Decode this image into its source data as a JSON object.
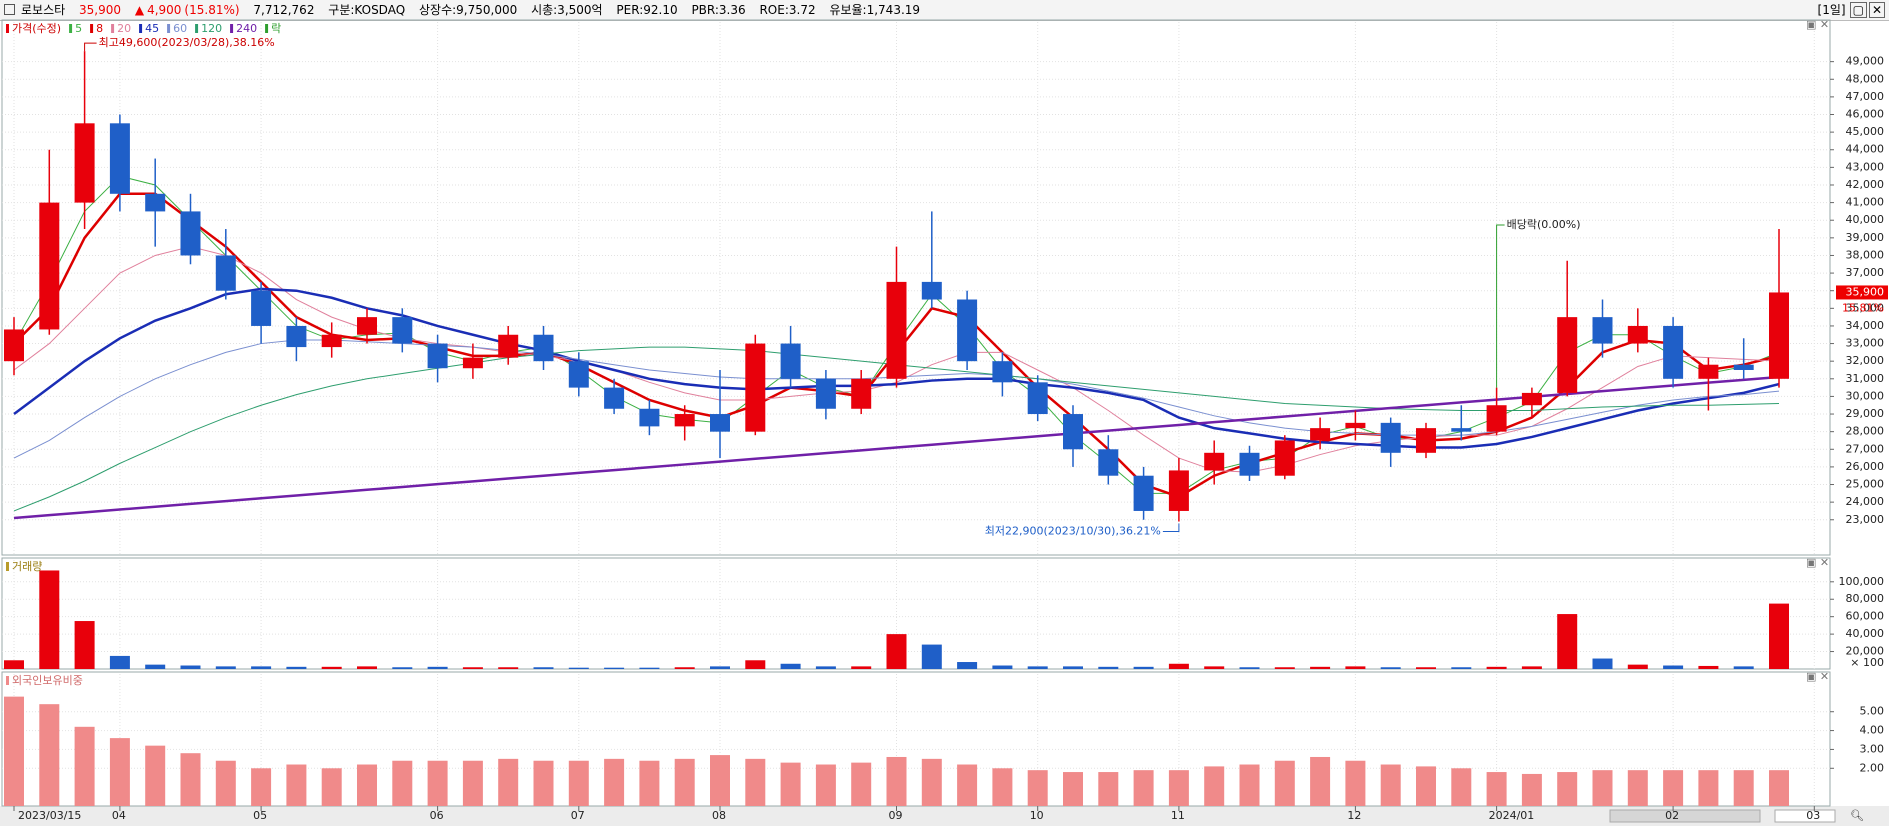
{
  "header": {
    "name": "로보스타",
    "price": "35,900",
    "arrow": "▲",
    "change": "4,900",
    "change_pct": "(15.81%)",
    "volume": "7,712,762",
    "market": "구분:KOSDAQ",
    "shares": "상장수:9,750,000",
    "cap": "시총:3,500억",
    "per": "PER:92.10",
    "pbr": "PBR:3.36",
    "roe": "ROE:3.72",
    "reserve": "유보율:1,743.19",
    "period": "[1일]"
  },
  "chart_data": [
    {
      "type": "candlestick",
      "legend_title": "가격(수정)",
      "legend_extra": "락",
      "up_color": "#e8000b",
      "down_color": "#1f5fc8",
      "extra_color": "#2e9e2e",
      "last_change_label": "15.81%",
      "categories": [
        "2023/03/15",
        null,
        null,
        "04",
        null,
        null,
        null,
        "05",
        null,
        null,
        null,
        null,
        "06",
        null,
        null,
        null,
        "07",
        null,
        null,
        null,
        "08",
        null,
        null,
        null,
        null,
        "09",
        null,
        null,
        null,
        "10",
        null,
        null,
        null,
        "11",
        null,
        null,
        null,
        null,
        "12",
        null,
        null,
        null,
        "2024/01",
        null,
        null,
        null,
        null,
        "02",
        null,
        null,
        null,
        "03"
      ],
      "open": [
        32000,
        33800,
        41000,
        45500,
        41500,
        40500,
        38000,
        36000,
        34000,
        32800,
        33500,
        34500,
        33000,
        31600,
        32200,
        33500,
        32000,
        30500,
        29300,
        28300,
        29000,
        28000,
        33000,
        31000,
        29300,
        31000,
        36500,
        35500,
        32000,
        30800,
        29000,
        27000,
        25500,
        23500,
        25800,
        26800,
        25500,
        27500,
        28200,
        28500,
        26800,
        28200,
        28000,
        29500,
        30200,
        34500,
        33000,
        34000,
        31000,
        31800,
        31000,
        null
      ],
      "high": [
        34500,
        44000,
        49600,
        46000,
        43500,
        41500,
        39500,
        36500,
        34500,
        34200,
        35000,
        35000,
        33500,
        33000,
        34000,
        34000,
        32500,
        31000,
        29800,
        29500,
        31500,
        33500,
        34000,
        31500,
        31500,
        38500,
        40500,
        36000,
        32500,
        31200,
        29500,
        27800,
        26000,
        26500,
        27500,
        27200,
        27800,
        28800,
        29200,
        28800,
        28500,
        29500,
        30500,
        30500,
        37700,
        35500,
        35000,
        34500,
        32200,
        33300,
        39500,
        null
      ],
      "low": [
        31200,
        33500,
        39500,
        40500,
        38500,
        37500,
        35500,
        33000,
        32000,
        32200,
        33000,
        32500,
        30800,
        31000,
        31800,
        31500,
        30000,
        29000,
        27800,
        27500,
        26500,
        27800,
        30500,
        28700,
        29000,
        30500,
        35000,
        31500,
        30000,
        28600,
        26000,
        25000,
        23000,
        22900,
        25000,
        25200,
        25300,
        27000,
        27500,
        26000,
        26500,
        27500,
        27800,
        28800,
        30000,
        32200,
        32500,
        30500,
        29200,
        31000,
        30500,
        null
      ],
      "close": [
        33800,
        41000,
        45500,
        41500,
        40500,
        38000,
        36000,
        34000,
        32800,
        33500,
        34500,
        33000,
        31600,
        32200,
        33500,
        32000,
        30500,
        29300,
        28300,
        29000,
        28000,
        33000,
        31000,
        29300,
        31000,
        36500,
        35500,
        32000,
        30800,
        29000,
        27000,
        25500,
        23500,
        25800,
        26800,
        25500,
        27500,
        28200,
        28500,
        26800,
        28200,
        28000,
        29500,
        30200,
        34500,
        33000,
        34000,
        31000,
        31800,
        31500,
        35900,
        null
      ],
      "series": [
        {
          "name": "5",
          "color": "#3cb043",
          "width": 1,
          "values": [
            33000,
            36500,
            40500,
            42500,
            42000,
            40000,
            38000,
            36000,
            34000,
            33200,
            33500,
            33600,
            32500,
            32000,
            32500,
            32800,
            31500,
            30000,
            29000,
            28700,
            28500,
            30000,
            31500,
            30500,
            30000,
            33000,
            35800,
            34000,
            31500,
            30000,
            27800,
            26200,
            24500,
            24500,
            25800,
            26300,
            26500,
            27800,
            28300,
            27600,
            27600,
            28000,
            28800,
            29700,
            32500,
            33500,
            33500,
            32300,
            31300,
            31700,
            32500,
            null
          ]
        },
        {
          "name": "8",
          "color": "#dd0000",
          "width": 2.5,
          "values": [
            33000,
            35000,
            39000,
            41500,
            41500,
            40000,
            38500,
            36500,
            34500,
            33500,
            33200,
            33300,
            32800,
            32300,
            32300,
            32500,
            31800,
            30800,
            29800,
            29200,
            28800,
            29500,
            30500,
            30300,
            30000,
            32500,
            35000,
            34500,
            32500,
            30500,
            28800,
            27000,
            25000,
            24300,
            25500,
            26200,
            26800,
            27400,
            27900,
            27800,
            27500,
            27600,
            28000,
            28800,
            30500,
            32500,
            33200,
            33000,
            31500,
            31800,
            32300,
            null
          ]
        },
        {
          "name": "20",
          "color": "#e0809c",
          "width": 1,
          "values": [
            31500,
            33000,
            35000,
            37000,
            38000,
            38500,
            38000,
            37000,
            35500,
            34500,
            33800,
            33300,
            33000,
            32800,
            32500,
            32300,
            32000,
            31500,
            30800,
            30200,
            29800,
            29800,
            30000,
            30200,
            30300,
            30800,
            31800,
            32500,
            32500,
            31500,
            30500,
            29200,
            27800,
            26500,
            25800,
            25700,
            26100,
            26700,
            27200,
            27500,
            27700,
            27800,
            27800,
            28300,
            29300,
            30500,
            31700,
            32300,
            32200,
            32100,
            32000,
            null
          ]
        },
        {
          "name": "45",
          "color": "#1a2db5",
          "width": 2.5,
          "values": [
            29000,
            30500,
            32000,
            33300,
            34300,
            35000,
            35800,
            36100,
            36000,
            35600,
            35000,
            34600,
            34000,
            33500,
            33000,
            32600,
            32000,
            31500,
            31000,
            30700,
            30500,
            30400,
            30500,
            30600,
            30600,
            30700,
            30900,
            31000,
            31000,
            30700,
            30500,
            30200,
            29800,
            28800,
            28200,
            27900,
            27600,
            27400,
            27300,
            27200,
            27100,
            27100,
            27300,
            27700,
            28200,
            28700,
            29200,
            29600,
            29900,
            30200,
            30700,
            null
          ]
        },
        {
          "name": "60",
          "color": "#7a8fd0",
          "width": 1,
          "values": [
            26500,
            27500,
            28800,
            30000,
            31000,
            31800,
            32500,
            33000,
            33200,
            33200,
            33100,
            33000,
            32900,
            32800,
            32600,
            32400,
            32100,
            31800,
            31500,
            31300,
            31100,
            31000,
            31000,
            31000,
            31000,
            31100,
            31200,
            31300,
            31200,
            31000,
            30700,
            30300,
            29900,
            29400,
            28900,
            28500,
            28200,
            28000,
            27900,
            27800,
            27800,
            27800,
            28000,
            28300,
            28700,
            29100,
            29500,
            29800,
            30000,
            30100,
            30300,
            null
          ]
        },
        {
          "name": "120",
          "color": "#2e9e6e",
          "width": 1,
          "values": [
            23500,
            24300,
            25200,
            26200,
            27100,
            28000,
            28800,
            29500,
            30100,
            30600,
            31000,
            31300,
            31600,
            31900,
            32200,
            32400,
            32600,
            32700,
            32800,
            32800,
            32700,
            32600,
            32400,
            32200,
            32000,
            31800,
            31600,
            31400,
            31200,
            31000,
            30800,
            30600,
            30400,
            30200,
            30000,
            29800,
            29600,
            29500,
            29400,
            29300,
            29250,
            29200,
            29200,
            29200,
            29300,
            29400,
            29450,
            29500,
            29500,
            29550,
            29600,
            null
          ]
        },
        {
          "name": "240",
          "color": "#7020a8",
          "width": 2.5,
          "values": [
            23100,
            23260,
            23420,
            23580,
            23740,
            23900,
            24060,
            24220,
            24380,
            24540,
            24700,
            24860,
            25020,
            25180,
            25340,
            25500,
            25660,
            25820,
            25980,
            26140,
            26300,
            26460,
            26620,
            26780,
            26940,
            27100,
            27260,
            27420,
            27580,
            27740,
            27900,
            28060,
            28220,
            28380,
            28540,
            28700,
            28860,
            29020,
            29180,
            29340,
            29500,
            29660,
            29820,
            29980,
            30140,
            30300,
            30460,
            30620,
            30780,
            30940,
            31100,
            null
          ]
        }
      ],
      "annotations": {
        "high": "최고49,600(2023/03/28),38.16%",
        "low": "최저22,900(2023/10/30),36.21%",
        "dividend": "배당락(0.00%)"
      },
      "ylim": [
        21000,
        51250
      ],
      "yticks": [
        {
          "value": 23000,
          "label": "23,000"
        },
        {
          "value": 24000,
          "label": "24,000"
        },
        {
          "value": 25000,
          "label": "25,000"
        },
        {
          "value": 26000,
          "label": "26,000"
        },
        {
          "value": 27000,
          "label": "27,000"
        },
        {
          "value": 28000,
          "label": "28,000"
        },
        {
          "value": 29000,
          "label": "29,000"
        },
        {
          "value": 30000,
          "label": "30,000"
        },
        {
          "value": 31000,
          "label": "31,000"
        },
        {
          "value": 32000,
          "label": "32,000"
        },
        {
          "value": 33000,
          "label": "33,000"
        },
        {
          "value": 34000,
          "label": "34,000"
        },
        {
          "value": 35000,
          "label": "35,000"
        },
        {
          "value": 36000,
          "label": "36,000"
        },
        {
          "value": 37000,
          "label": "37,000"
        },
        {
          "value": 38000,
          "label": "38,000"
        },
        {
          "value": 39000,
          "label": "39,000"
        },
        {
          "value": 40000,
          "label": "40,000"
        },
        {
          "value": 41000,
          "label": "41,000"
        },
        {
          "value": 42000,
          "label": "42,000"
        },
        {
          "value": 43000,
          "label": "43,000"
        },
        {
          "value": 44000,
          "label": "44,000"
        },
        {
          "value": 45000,
          "label": "45,000"
        },
        {
          "value": 46000,
          "label": "46,000"
        },
        {
          "value": 47000,
          "label": "47,000"
        },
        {
          "value": 48000,
          "label": "48,000"
        },
        {
          "value": 49000,
          "label": "49,000"
        }
      ]
    },
    {
      "type": "bar",
      "title": "거래량",
      "unit": "× 100",
      "color_by_candle": true,
      "values": [
        10000,
        113000,
        55000,
        15000,
        5000,
        4000,
        3000,
        3000,
        2500,
        2500,
        3000,
        2000,
        2500,
        2000,
        2000,
        2000,
        1500,
        1500,
        1500,
        2000,
        3000,
        10000,
        6000,
        3000,
        3000,
        40000,
        28000,
        8000,
        4000,
        3000,
        3000,
        2500,
        2500,
        6000,
        3000,
        2000,
        2000,
        2500,
        3000,
        2000,
        2000,
        2000,
        2500,
        3000,
        63000,
        12000,
        5000,
        4000,
        3500,
        3000,
        75000,
        null
      ],
      "ylim": [
        0,
        125000
      ],
      "yticks": [
        {
          "value": 20000,
          "label": "20,000"
        },
        {
          "value": 40000,
          "label": "40,000"
        },
        {
          "value": 60000,
          "label": "60,000"
        },
        {
          "value": 80000,
          "label": "80,000"
        },
        {
          "value": 100000,
          "label": "100,000"
        }
      ]
    },
    {
      "type": "bar",
      "title": "외국인보유비중",
      "color": "#f08a8a",
      "color_by_candle": false,
      "values": [
        5.8,
        5.4,
        4.2,
        3.6,
        3.2,
        2.8,
        2.4,
        2.0,
        2.2,
        2.0,
        2.2,
        2.4,
        2.4,
        2.4,
        2.5,
        2.4,
        2.4,
        2.5,
        2.4,
        2.5,
        2.7,
        2.5,
        2.3,
        2.2,
        2.3,
        2.6,
        2.5,
        2.2,
        2.0,
        1.9,
        1.8,
        1.8,
        1.9,
        1.9,
        2.1,
        2.2,
        2.4,
        2.6,
        2.4,
        2.2,
        2.1,
        2.0,
        1.8,
        1.7,
        1.8,
        1.9,
        1.9,
        1.9,
        1.9,
        1.9,
        1.9,
        null
      ],
      "ylim": [
        0,
        7
      ],
      "yticks": [
        {
          "value": 2,
          "label": "2.00"
        },
        {
          "value": 3,
          "label": "3.00"
        },
        {
          "value": 4,
          "label": "4.00"
        },
        {
          "value": 5,
          "label": "5.00"
        }
      ]
    }
  ]
}
